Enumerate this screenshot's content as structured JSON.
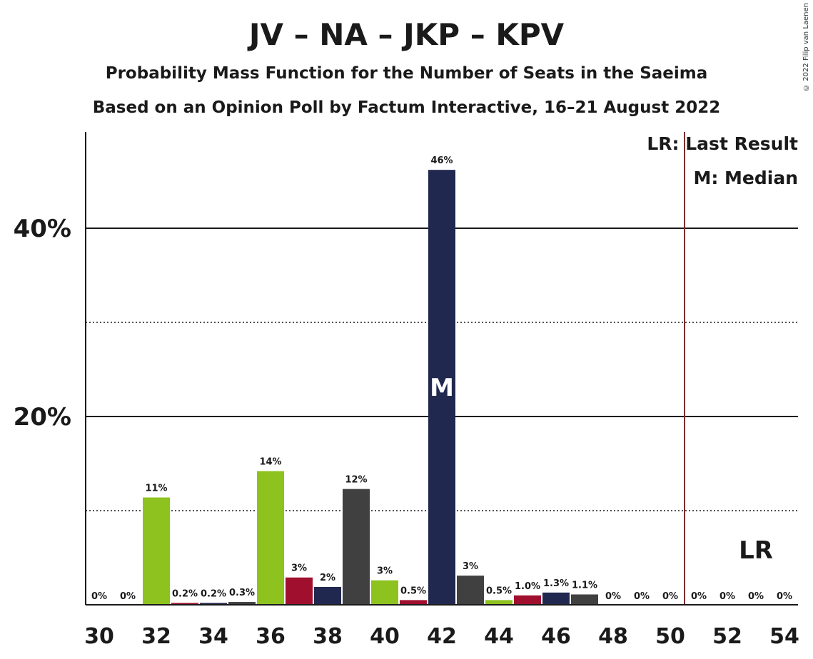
{
  "title": "JV – NA – JKP – KPV",
  "subtitle1": "Probability Mass Function for the Number of Seats in the Saeima",
  "subtitle2": "Based on an Opinion Poll by Factum Interactive, 16–21 August 2022",
  "copyright": "© 2022 Filip van Laenen",
  "legend": {
    "lr": "LR: Last Result",
    "m": "M: Median"
  },
  "median_marker": "M",
  "lr_marker": "LR",
  "chart_data": {
    "type": "bar",
    "x": [
      30,
      31,
      32,
      33,
      34,
      35,
      36,
      37,
      38,
      39,
      40,
      41,
      42,
      43,
      44,
      45,
      46,
      47,
      48,
      49,
      50,
      51,
      52,
      53,
      54
    ],
    "values": [
      0,
      0,
      11.4,
      0.2,
      0.2,
      0.3,
      14.2,
      2.9,
      1.9,
      12.3,
      2.6,
      0.5,
      46.2,
      3.1,
      0.5,
      1.0,
      1.3,
      1.1,
      0,
      0,
      0,
      0,
      0,
      0,
      0
    ],
    "labels": [
      "0%",
      "0%",
      "11%",
      "0.2%",
      "0.2%",
      "0.3%",
      "14%",
      "3%",
      "2%",
      "12%",
      "3%",
      "0.5%",
      "46%",
      "3%",
      "0.5%",
      "1.0%",
      "1.3%",
      "1.1%",
      "0%",
      "0%",
      "0%",
      "0%",
      "0%",
      "0%",
      "0%"
    ],
    "colors": [
      "#8dc21f",
      "#a0102e",
      "#8dc21f",
      "#a0102e",
      "#21284f",
      "#404040",
      "#8dc21f",
      "#a0102e",
      "#21284f",
      "#404040",
      "#8dc21f",
      "#a0102e",
      "#21284f",
      "#404040",
      "#8dc21f",
      "#a0102e",
      "#21284f",
      "#404040",
      "#8dc21f",
      "#a0102e",
      "#21284f",
      "#404040",
      "#8dc21f",
      "#a0102e",
      "#21284f"
    ],
    "x_tick_labels": [
      "30",
      "32",
      "34",
      "36",
      "38",
      "40",
      "42",
      "44",
      "46",
      "48",
      "50",
      "52",
      "54"
    ],
    "y_tick_labels": [
      "20%",
      "40%"
    ],
    "ylim": [
      0,
      50
    ],
    "median": 42,
    "last_result": 50.5,
    "last_result_label_x": 53
  }
}
